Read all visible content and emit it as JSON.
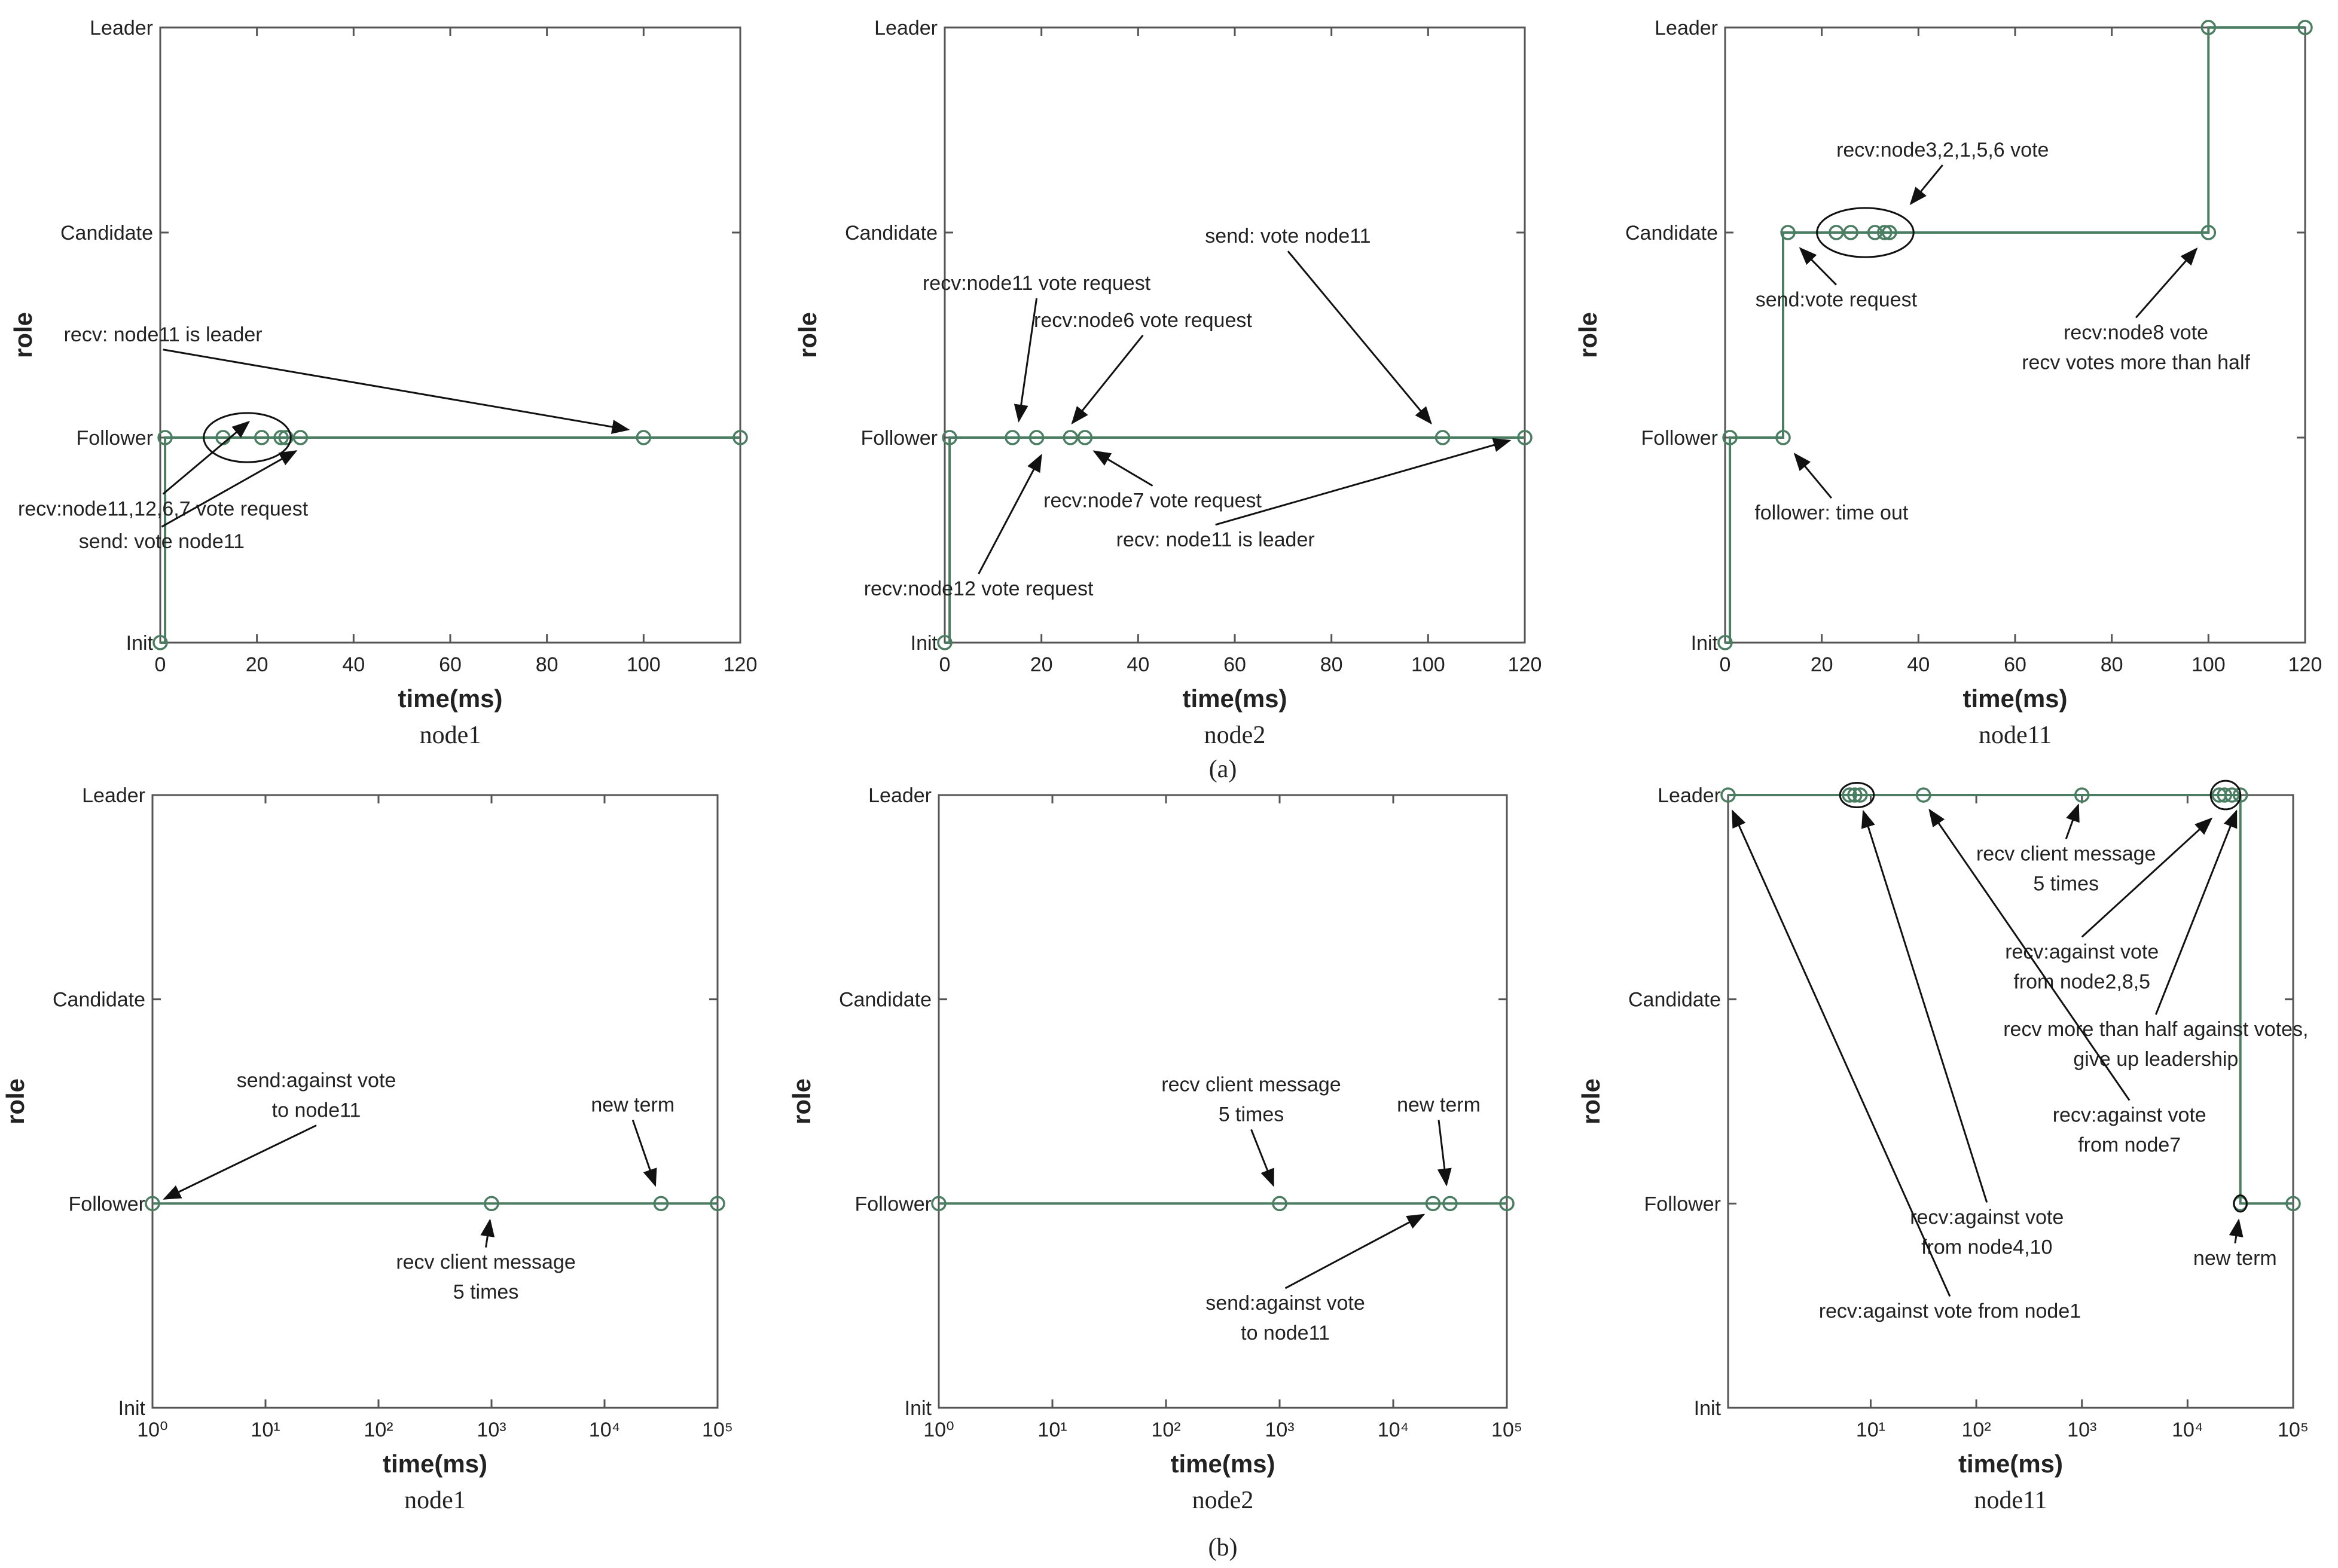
{
  "chart_data": [
    {
      "type": "line",
      "caption": "node1",
      "xscale": "linear",
      "xlim": [
        0,
        120
      ],
      "xticks": [
        "0",
        "20",
        "40",
        "60",
        "80",
        "100",
        "120"
      ],
      "ylabels": [
        "Init",
        "Follower",
        "Candidate",
        "Leader"
      ],
      "xlabel": "time(ms)",
      "ylabel": "role",
      "series_color": "#4a7d62",
      "steps": [
        {
          "x": 0,
          "y": 0
        },
        {
          "x": 1,
          "y": 0
        },
        {
          "x": 1,
          "y": 1
        },
        {
          "x": 120,
          "y": 1
        }
      ],
      "markers": [
        {
          "x": 0,
          "y": 0
        },
        {
          "x": 1,
          "y": 1
        },
        {
          "x": 13,
          "y": 1
        },
        {
          "x": 21,
          "y": 1
        },
        {
          "x": 25,
          "y": 1
        },
        {
          "x": 26,
          "y": 1
        },
        {
          "x": 29,
          "y": 1
        },
        {
          "x": 100,
          "y": 1
        },
        {
          "x": 120,
          "y": 1
        }
      ],
      "ellipses": [
        {
          "x": 18,
          "y": 1,
          "rx": 9,
          "ry": 0.12
        }
      ],
      "annotations": [
        {
          "lines": [
            "recv:node11,12,6,7 vote request"
          ],
          "label_x": 0.57,
          "label_y": 0.62,
          "tip_x": 20,
          "tip_y": 1.11
        },
        {
          "lines": [
            "recv: node11 is leader"
          ],
          "label_x": 0.57,
          "label_y": 1.47,
          "tip_x": 99,
          "tip_y": 1.03
        },
        {
          "lines": [
            "send: vote node11"
          ],
          "label_x": 0.3,
          "label_y": 0.46,
          "tip_x": 30,
          "tip_y": 0.96
        }
      ]
    },
    {
      "type": "line",
      "caption": "node2",
      "xscale": "linear",
      "xlim": [
        0,
        120
      ],
      "xticks": [
        "0",
        "20",
        "40",
        "60",
        "80",
        "100",
        "120"
      ],
      "ylabels": [
        "Init",
        "Follower",
        "Candidate",
        "Leader"
      ],
      "xlabel": "time(ms)",
      "ylabel": "role",
      "series_color": "#4a7d62",
      "steps": [
        {
          "x": 0,
          "y": 0
        },
        {
          "x": 1,
          "y": 0
        },
        {
          "x": 1,
          "y": 1
        },
        {
          "x": 120,
          "y": 1
        }
      ],
      "markers": [
        {
          "x": 0,
          "y": 0
        },
        {
          "x": 1,
          "y": 1
        },
        {
          "x": 14,
          "y": 1
        },
        {
          "x": 19,
          "y": 1
        },
        {
          "x": 26,
          "y": 1
        },
        {
          "x": 29,
          "y": 1
        },
        {
          "x": 103,
          "y": 1
        },
        {
          "x": 120,
          "y": 1
        }
      ],
      "ellipses": [],
      "annotations": [
        {
          "lines": [
            "recv:node11 vote request"
          ],
          "label_x": 19,
          "label_y": 1.72,
          "tip_x": 15,
          "tip_y": 1.03
        },
        {
          "lines": [
            "recv:node6 vote request"
          ],
          "label_x": 41,
          "label_y": 1.54,
          "tip_x": 25,
          "tip_y": 1.03
        },
        {
          "lines": [
            "send: vote node11"
          ],
          "label_x": 71,
          "label_y": 1.95,
          "tip_x": 102,
          "tip_y": 1.03
        },
        {
          "lines": [
            "recv:node7 vote request"
          ],
          "label_x": 43,
          "label_y": 0.66,
          "tip_x": 29,
          "tip_y": 0.96
        },
        {
          "lines": [
            "recv: node11 is leader"
          ],
          "label_x": 56,
          "label_y": 0.47,
          "tip_x": 119,
          "tip_y": 1.0
        },
        {
          "lines": [
            "recv:node12 vote request"
          ],
          "label_x": 7,
          "label_y": 0.23,
          "tip_x": 21,
          "tip_y": 0.96
        }
      ]
    },
    {
      "type": "line",
      "caption": "node11",
      "xscale": "linear",
      "xlim": [
        0,
        120
      ],
      "xticks": [
        "0",
        "20",
        "40",
        "60",
        "80",
        "100",
        "120"
      ],
      "ylabels": [
        "Init",
        "Follower",
        "Candidate",
        "Leader"
      ],
      "xlabel": "time(ms)",
      "ylabel": "role",
      "series_color": "#4a7d62",
      "steps": [
        {
          "x": 0,
          "y": 0
        },
        {
          "x": 1,
          "y": 0
        },
        {
          "x": 1,
          "y": 1
        },
        {
          "x": 12,
          "y": 1
        },
        {
          "x": 12,
          "y": 2
        },
        {
          "x": 100,
          "y": 2
        },
        {
          "x": 100,
          "y": 3
        },
        {
          "x": 120,
          "y": 3
        }
      ],
      "markers": [
        {
          "x": 0,
          "y": 0
        },
        {
          "x": 1,
          "y": 1
        },
        {
          "x": 12,
          "y": 1
        },
        {
          "x": 13,
          "y": 2
        },
        {
          "x": 23,
          "y": 2
        },
        {
          "x": 26,
          "y": 2
        },
        {
          "x": 31,
          "y": 2
        },
        {
          "x": 33,
          "y": 2
        },
        {
          "x": 34,
          "y": 2
        },
        {
          "x": 100,
          "y": 2
        },
        {
          "x": 100,
          "y": 3
        },
        {
          "x": 120,
          "y": 3
        }
      ],
      "ellipses": [
        {
          "x": 29,
          "y": 2,
          "rx": 10,
          "ry": 0.12
        }
      ],
      "annotations": [
        {
          "lines": [
            "recv:node3,2,1,5,6 vote"
          ],
          "label_x": 45,
          "label_y": 2.37,
          "tip_x": 37,
          "tip_y": 2.1
        },
        {
          "lines": [
            "send:vote request"
          ],
          "label_x": 23,
          "label_y": 1.64,
          "tip_x": 14,
          "tip_y": 1.96
        },
        {
          "lines": [
            "recv:node8 vote",
            "recv votes more than half"
          ],
          "label_x": 85,
          "label_y": 1.48,
          "tip_x": 99,
          "tip_y": 1.96
        },
        {
          "lines": [
            "follower: time out"
          ],
          "label_x": 22,
          "label_y": 0.6,
          "tip_x": 13,
          "tip_y": 0.96
        }
      ]
    },
    {
      "type": "line",
      "caption": "node1",
      "xscale": "log",
      "xlim": [
        0,
        5
      ],
      "xticks": [
        "10⁰",
        "10¹",
        "10²",
        "10³",
        "10⁴",
        "10⁵"
      ],
      "ylabels": [
        "Init",
        "Follower",
        "Candidate",
        "Leader"
      ],
      "xlabel": "time(ms)",
      "ylabel": "role",
      "series_color": "#4a7d62",
      "steps": [
        {
          "x": 0,
          "y": 1
        },
        {
          "x": 5,
          "y": 1
        }
      ],
      "markers": [
        {
          "x": 0,
          "y": 1
        },
        {
          "x": 3,
          "y": 1
        },
        {
          "x": 4.5,
          "y": 1
        },
        {
          "x": 5,
          "y": 1
        }
      ],
      "ellipses": [],
      "annotations": [
        {
          "lines": [
            "send:against vote",
            "to node11"
          ],
          "label_x": 1.45,
          "label_y": 1.57,
          "tip_x": 0.02,
          "tip_y": 1.0
        },
        {
          "lines": [
            "new term"
          ],
          "label_x": 4.25,
          "label_y": 1.45,
          "tip_x": 4.48,
          "tip_y": 1.04
        },
        {
          "lines": [
            "recv client message",
            "5 times"
          ],
          "label_x": 2.95,
          "label_y": 0.68,
          "tip_x": 3.0,
          "tip_y": 0.97
        }
      ]
    },
    {
      "type": "line",
      "caption": "node2",
      "xscale": "log",
      "xlim": [
        0,
        5
      ],
      "xticks": [
        "10⁰",
        "10¹",
        "10²",
        "10³",
        "10⁴",
        "10⁵"
      ],
      "ylabels": [
        "Init",
        "Follower",
        "Candidate",
        "Leader"
      ],
      "xlabel": "time(ms)",
      "ylabel": "role",
      "series_color": "#4a7d62",
      "steps": [
        {
          "x": 0,
          "y": 1
        },
        {
          "x": 5,
          "y": 1
        }
      ],
      "markers": [
        {
          "x": 0,
          "y": 1
        },
        {
          "x": 3,
          "y": 1
        },
        {
          "x": 4.35,
          "y": 1
        },
        {
          "x": 4.5,
          "y": 1
        },
        {
          "x": 5,
          "y": 1
        }
      ],
      "ellipses": [],
      "annotations": [
        {
          "lines": [
            "recv client message",
            "5 times"
          ],
          "label_x": 2.75,
          "label_y": 1.55,
          "tip_x": 2.98,
          "tip_y": 1.04
        },
        {
          "lines": [
            "new term"
          ],
          "label_x": 4.4,
          "label_y": 1.45,
          "tip_x": 4.48,
          "tip_y": 1.04
        },
        {
          "lines": [
            "send:against vote",
            "to node11"
          ],
          "label_x": 3.05,
          "label_y": 0.48,
          "tip_x": 4.35,
          "tip_y": 0.97
        }
      ]
    },
    {
      "type": "line",
      "caption": "node11",
      "xscale": "log",
      "xlim": [
        -0.35,
        5
      ],
      "xticks": [
        "10¹",
        "10²",
        "10³",
        "10⁴",
        "10⁵"
      ],
      "xtick_values": [
        1,
        2,
        3,
        4,
        5
      ],
      "ylabels": [
        "Init",
        "Follower",
        "Candidate",
        "Leader"
      ],
      "xlabel": "time(ms)",
      "ylabel": "role",
      "series_color": "#4a7d62",
      "steps": [
        {
          "x": -0.35,
          "y": 3
        },
        {
          "x": 4.5,
          "y": 3
        },
        {
          "x": 4.5,
          "y": 1
        },
        {
          "x": 5,
          "y": 1
        }
      ],
      "markers": [
        {
          "x": -0.35,
          "y": 3
        },
        {
          "x": 0.8,
          "y": 3
        },
        {
          "x": 0.85,
          "y": 3
        },
        {
          "x": 0.9,
          "y": 3
        },
        {
          "x": 1.5,
          "y": 3
        },
        {
          "x": 3.0,
          "y": 3
        },
        {
          "x": 4.3,
          "y": 3
        },
        {
          "x": 4.35,
          "y": 3
        },
        {
          "x": 4.42,
          "y": 3
        },
        {
          "x": 4.5,
          "y": 3
        },
        {
          "x": 4.5,
          "y": 1
        },
        {
          "x": 5,
          "y": 1
        }
      ],
      "ellipses": [
        {
          "x": 0.87,
          "y": 3,
          "rx": 0.16,
          "ry": 0.06
        },
        {
          "x": 4.36,
          "y": 3,
          "rx": 0.14,
          "ry": 0.07
        },
        {
          "x": 4.5,
          "y": 1,
          "rx": 0.06,
          "ry": 0.04
        }
      ],
      "annotations": [
        {
          "lines": [
            "recv client message",
            "5 times"
          ],
          "label_x": 2.85,
          "label_y": 2.68,
          "tip_x": 3.0,
          "tip_y": 3.0
        },
        {
          "lines": [
            "recv:against vote",
            "from node2,8,5"
          ],
          "label_x": 3.0,
          "label_y": 2.2,
          "tip_x": 4.3,
          "tip_y": 2.92
        },
        {
          "lines": [
            "recv more than half against votes,",
            "give up leadership"
          ],
          "label_x": 3.7,
          "label_y": 1.82,
          "tip_x": 4.5,
          "tip_y": 2.97
        },
        {
          "lines": [
            "recv:against vote",
            "from node7"
          ],
          "label_x": 3.45,
          "label_y": 1.4,
          "tip_x": 1.5,
          "tip_y": 2.97
        },
        {
          "lines": [
            "recv:against vote",
            "from node4,10"
          ],
          "label_x": 2.1,
          "label_y": 0.9,
          "tip_x": 0.9,
          "tip_y": 2.97
        },
        {
          "lines": [
            "recv:against vote from node1"
          ],
          "label_x": 1.75,
          "label_y": 0.44,
          "tip_x": -0.35,
          "tip_y": 2.97
        },
        {
          "lines": [
            "new term"
          ],
          "label_x": 4.45,
          "label_y": 0.7,
          "tip_x": 4.5,
          "tip_y": 0.97
        }
      ]
    }
  ],
  "group_labels": [
    "(a)",
    "(b)"
  ]
}
